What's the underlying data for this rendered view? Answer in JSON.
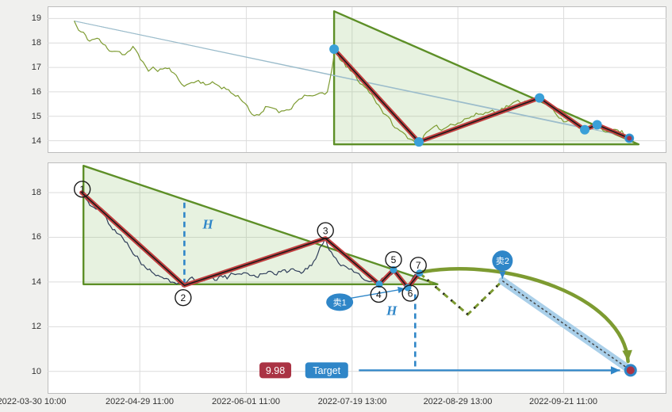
{
  "colors": {
    "grid": "#dcdcdc",
    "panel_border": "#bdbdbd",
    "panel_bg": "#ffffff",
    "axis_text": "#333333",
    "olive": "#7d9b31",
    "navy": "#2e3d59",
    "triangle_stroke": "#5d8f27",
    "triangle_fill": "rgba(135,190,100,0.20)",
    "zigzag_red": "#c24040",
    "zigzag_core": "#1b1b1b",
    "dot_blue": "#3aa0d8",
    "accent_blue": "#2f86c8",
    "band_blue": "#a9cfe9",
    "badge_red": "#aa3344",
    "trend_thin": "#9bbccb"
  },
  "chart_data": [
    {
      "name": "overview",
      "type": "line",
      "ylim": [
        13.5,
        19.5
      ],
      "yticks": [
        19,
        18,
        17,
        16,
        15,
        14
      ],
      "x_gridlines": [
        0.149,
        0.321,
        0.492,
        0.663,
        0.834
      ],
      "series": [
        {
          "name": "price",
          "color_key": "olive",
          "noise": 0.22,
          "seed": 11,
          "anchors": [
            [
              0.043,
              18.9
            ],
            [
              0.05,
              18.5
            ],
            [
              0.058,
              18.35
            ],
            [
              0.068,
              18.1
            ],
            [
              0.08,
              18.2
            ],
            [
              0.09,
              17.9
            ],
            [
              0.1,
              17.75
            ],
            [
              0.112,
              17.72
            ],
            [
              0.125,
              17.55
            ],
            [
              0.138,
              17.8
            ],
            [
              0.15,
              17.3
            ],
            [
              0.163,
              16.95
            ],
            [
              0.178,
              16.9
            ],
            [
              0.19,
              16.98
            ],
            [
              0.2,
              16.85
            ],
            [
              0.212,
              16.45
            ],
            [
              0.225,
              16.3
            ],
            [
              0.24,
              16.45
            ],
            [
              0.255,
              16.38
            ],
            [
              0.27,
              16.3
            ],
            [
              0.285,
              16.2
            ],
            [
              0.3,
              15.9
            ],
            [
              0.315,
              15.7
            ],
            [
              0.33,
              15.15
            ],
            [
              0.342,
              14.95
            ],
            [
              0.352,
              15.3
            ],
            [
              0.365,
              15.35
            ],
            [
              0.378,
              15.2
            ],
            [
              0.39,
              15.35
            ],
            [
              0.402,
              15.6
            ],
            [
              0.415,
              15.9
            ],
            [
              0.428,
              15.7
            ],
            [
              0.44,
              15.9
            ],
            [
              0.452,
              16.0
            ],
            [
              0.46,
              16.9
            ],
            [
              0.465,
              17.78
            ],
            [
              0.472,
              17.4
            ],
            [
              0.482,
              17.0
            ],
            [
              0.493,
              16.75
            ],
            [
              0.505,
              16.4
            ],
            [
              0.52,
              16.0
            ],
            [
              0.535,
              15.5
            ],
            [
              0.55,
              14.9
            ],
            [
              0.565,
              14.45
            ],
            [
              0.578,
              14.2
            ],
            [
              0.59,
              14.05
            ],
            [
              0.6,
              13.95
            ],
            [
              0.612,
              14.3
            ],
            [
              0.625,
              14.45
            ],
            [
              0.64,
              14.5
            ],
            [
              0.655,
              14.75
            ],
            [
              0.67,
              14.85
            ],
            [
              0.685,
              15.0
            ],
            [
              0.7,
              15.1
            ],
            [
              0.715,
              15.2
            ],
            [
              0.73,
              15.3
            ],
            [
              0.745,
              15.45
            ],
            [
              0.76,
              15.55
            ],
            [
              0.775,
              15.65
            ],
            [
              0.79,
              15.75
            ],
            [
              0.8,
              15.6
            ],
            [
              0.815,
              15.3
            ],
            [
              0.83,
              14.95
            ],
            [
              0.845,
              14.7
            ],
            [
              0.858,
              14.55
            ],
            [
              0.868,
              14.45
            ],
            [
              0.878,
              14.58
            ],
            [
              0.888,
              14.65
            ],
            [
              0.898,
              14.4
            ],
            [
              0.908,
              14.5
            ],
            [
              0.918,
              14.45
            ],
            [
              0.928,
              14.35
            ],
            [
              0.94,
              14.1
            ]
          ]
        }
      ],
      "triangle": [
        [
          0.463,
          13.85
        ],
        [
          0.463,
          19.3
        ],
        [
          0.955,
          13.85
        ]
      ],
      "trendlines": [
        [
          [
            0.043,
            18.9
          ],
          [
            0.868,
            14.5
          ]
        ],
        [
          [
            0.043,
            18.9
          ],
          [
            0.94,
            14.15
          ]
        ]
      ],
      "zigzag": [
        [
          0.463,
          17.75
        ],
        [
          0.6,
          13.95
        ],
        [
          0.795,
          15.75
        ],
        [
          0.868,
          14.45
        ],
        [
          0.888,
          14.65
        ],
        [
          0.94,
          14.1
        ]
      ],
      "end_dot": [
        0.94,
        14.1
      ]
    },
    {
      "name": "detail",
      "type": "line",
      "ylim": [
        9.0,
        19.35
      ],
      "yticks": [
        18,
        16,
        14,
        12,
        10
      ],
      "x_gridlines": [
        0.149,
        0.321,
        0.492,
        0.663,
        0.834
      ],
      "x_labels": [
        {
          "f": 0.0,
          "text": "2022-03-30 10:00"
        },
        {
          "f": 0.149,
          "text": "2022-04-29 11:00"
        },
        {
          "f": 0.321,
          "text": "2022-06-01 11:00"
        },
        {
          "f": 0.492,
          "text": "2022-07-19 13:00"
        },
        {
          "f": 0.663,
          "text": "2022-08-29 13:00"
        },
        {
          "f": 0.834,
          "text": "2022-09-21 11:00"
        }
      ],
      "series": [
        {
          "name": "price-detail",
          "color_key": "navy",
          "noise": 0.22,
          "seed": 5,
          "anchors": [
            [
              0.055,
              18.0
            ],
            [
              0.065,
              17.6
            ],
            [
              0.075,
              17.3
            ],
            [
              0.085,
              17.15
            ],
            [
              0.095,
              16.8
            ],
            [
              0.105,
              16.4
            ],
            [
              0.115,
              16.1
            ],
            [
              0.125,
              15.9
            ],
            [
              0.135,
              15.5
            ],
            [
              0.145,
              15.1
            ],
            [
              0.155,
              14.75
            ],
            [
              0.165,
              14.5
            ],
            [
              0.175,
              14.35
            ],
            [
              0.185,
              14.1
            ],
            [
              0.195,
              14.05
            ],
            [
              0.205,
              13.95
            ],
            [
              0.215,
              13.9
            ],
            [
              0.221,
              13.85
            ],
            [
              0.23,
              14.2
            ],
            [
              0.24,
              14.1
            ],
            [
              0.25,
              14.05
            ],
            [
              0.26,
              14.25
            ],
            [
              0.27,
              14.15
            ],
            [
              0.28,
              14.3
            ],
            [
              0.29,
              14.2
            ],
            [
              0.3,
              14.35
            ],
            [
              0.31,
              14.25
            ],
            [
              0.32,
              14.3
            ],
            [
              0.33,
              14.35
            ],
            [
              0.34,
              14.3
            ],
            [
              0.35,
              14.5
            ],
            [
              0.36,
              14.45
            ],
            [
              0.37,
              14.4
            ],
            [
              0.38,
              14.5
            ],
            [
              0.39,
              14.45
            ],
            [
              0.4,
              14.55
            ],
            [
              0.41,
              14.5
            ],
            [
              0.42,
              14.6
            ],
            [
              0.43,
              14.9
            ],
            [
              0.44,
              15.5
            ],
            [
              0.449,
              15.95
            ],
            [
              0.455,
              15.5
            ],
            [
              0.462,
              15.2
            ],
            [
              0.47,
              14.9
            ],
            [
              0.478,
              14.7
            ],
            [
              0.487,
              14.55
            ],
            [
              0.495,
              14.5
            ],
            [
              0.503,
              14.35
            ],
            [
              0.512,
              14.2
            ],
            [
              0.52,
              14.1
            ],
            [
              0.528,
              14.0
            ],
            [
              0.536,
              13.9
            ],
            [
              0.545,
              14.2
            ],
            [
              0.552,
              14.4
            ],
            [
              0.559,
              14.55
            ],
            [
              0.566,
              14.3
            ],
            [
              0.574,
              14.0
            ],
            [
              0.582,
              13.75
            ],
            [
              0.59,
              14.1
            ],
            [
              0.601,
              14.4
            ]
          ]
        }
      ],
      "triangle": [
        [
          0.058,
          13.9
        ],
        [
          0.058,
          19.2
        ],
        [
          0.63,
          13.9
        ]
      ],
      "zigzag": [
        [
          0.055,
          18.0
        ],
        [
          0.221,
          13.85
        ],
        [
          0.449,
          15.95
        ],
        [
          0.536,
          13.9
        ],
        [
          0.559,
          14.55
        ],
        [
          0.582,
          13.75
        ],
        [
          0.601,
          14.4
        ]
      ],
      "numbers": [
        {
          "n": "1",
          "f": 0.056,
          "v": 18.15
        },
        {
          "n": "2",
          "f": 0.219,
          "v": 13.3
        },
        {
          "n": "3",
          "f": 0.449,
          "v": 16.3
        },
        {
          "n": "4",
          "f": 0.535,
          "v": 13.45
        },
        {
          "n": "5",
          "f": 0.559,
          "v": 15.0
        },
        {
          "n": "6",
          "f": 0.586,
          "v": 13.5
        },
        {
          "n": "7",
          "f": 0.599,
          "v": 14.75
        }
      ],
      "h_text": "H",
      "h_labels": [
        {
          "f": 0.259,
          "v": 16.6
        },
        {
          "f": 0.556,
          "v": 12.75
        }
      ],
      "dashed_verticals": [
        {
          "f": 0.221,
          "from": 17.55,
          "to": 13.95
        },
        {
          "f": 0.594,
          "from": 13.45,
          "to": 10.1
        }
      ],
      "sell1": {
        "text": "卖1",
        "f": 0.472,
        "v": 13.1,
        "to_f": 0.578,
        "to_v": 13.7
      },
      "sell2": {
        "text": "卖2",
        "f": 0.735,
        "v": 14.95,
        "to_f": 0.735,
        "to_v": 14.15
      },
      "proj_zigzag": [
        [
          0.601,
          14.4
        ],
        [
          0.679,
          12.55
        ],
        [
          0.735,
          14.05
        ]
      ],
      "band": [
        [
          0.735,
          14.05
        ],
        [
          0.942,
          10.05
        ]
      ],
      "curve": {
        "p0": [
          0.605,
          14.45
        ],
        "c1": [
          0.74,
          15.1
        ],
        "c2": [
          0.93,
          13.4
        ],
        "p1": [
          0.938,
          10.45
        ]
      },
      "target": {
        "f": 0.942,
        "v": 10.05
      },
      "target_arrow": {
        "from_f": 0.503,
        "to_f": 0.925,
        "v": 10.05
      },
      "price_badge": {
        "text": "9.98",
        "f": 0.368,
        "v": 10.05
      },
      "target_badge": {
        "text": "Target",
        "f": 0.451,
        "v": 10.05
      }
    }
  ]
}
